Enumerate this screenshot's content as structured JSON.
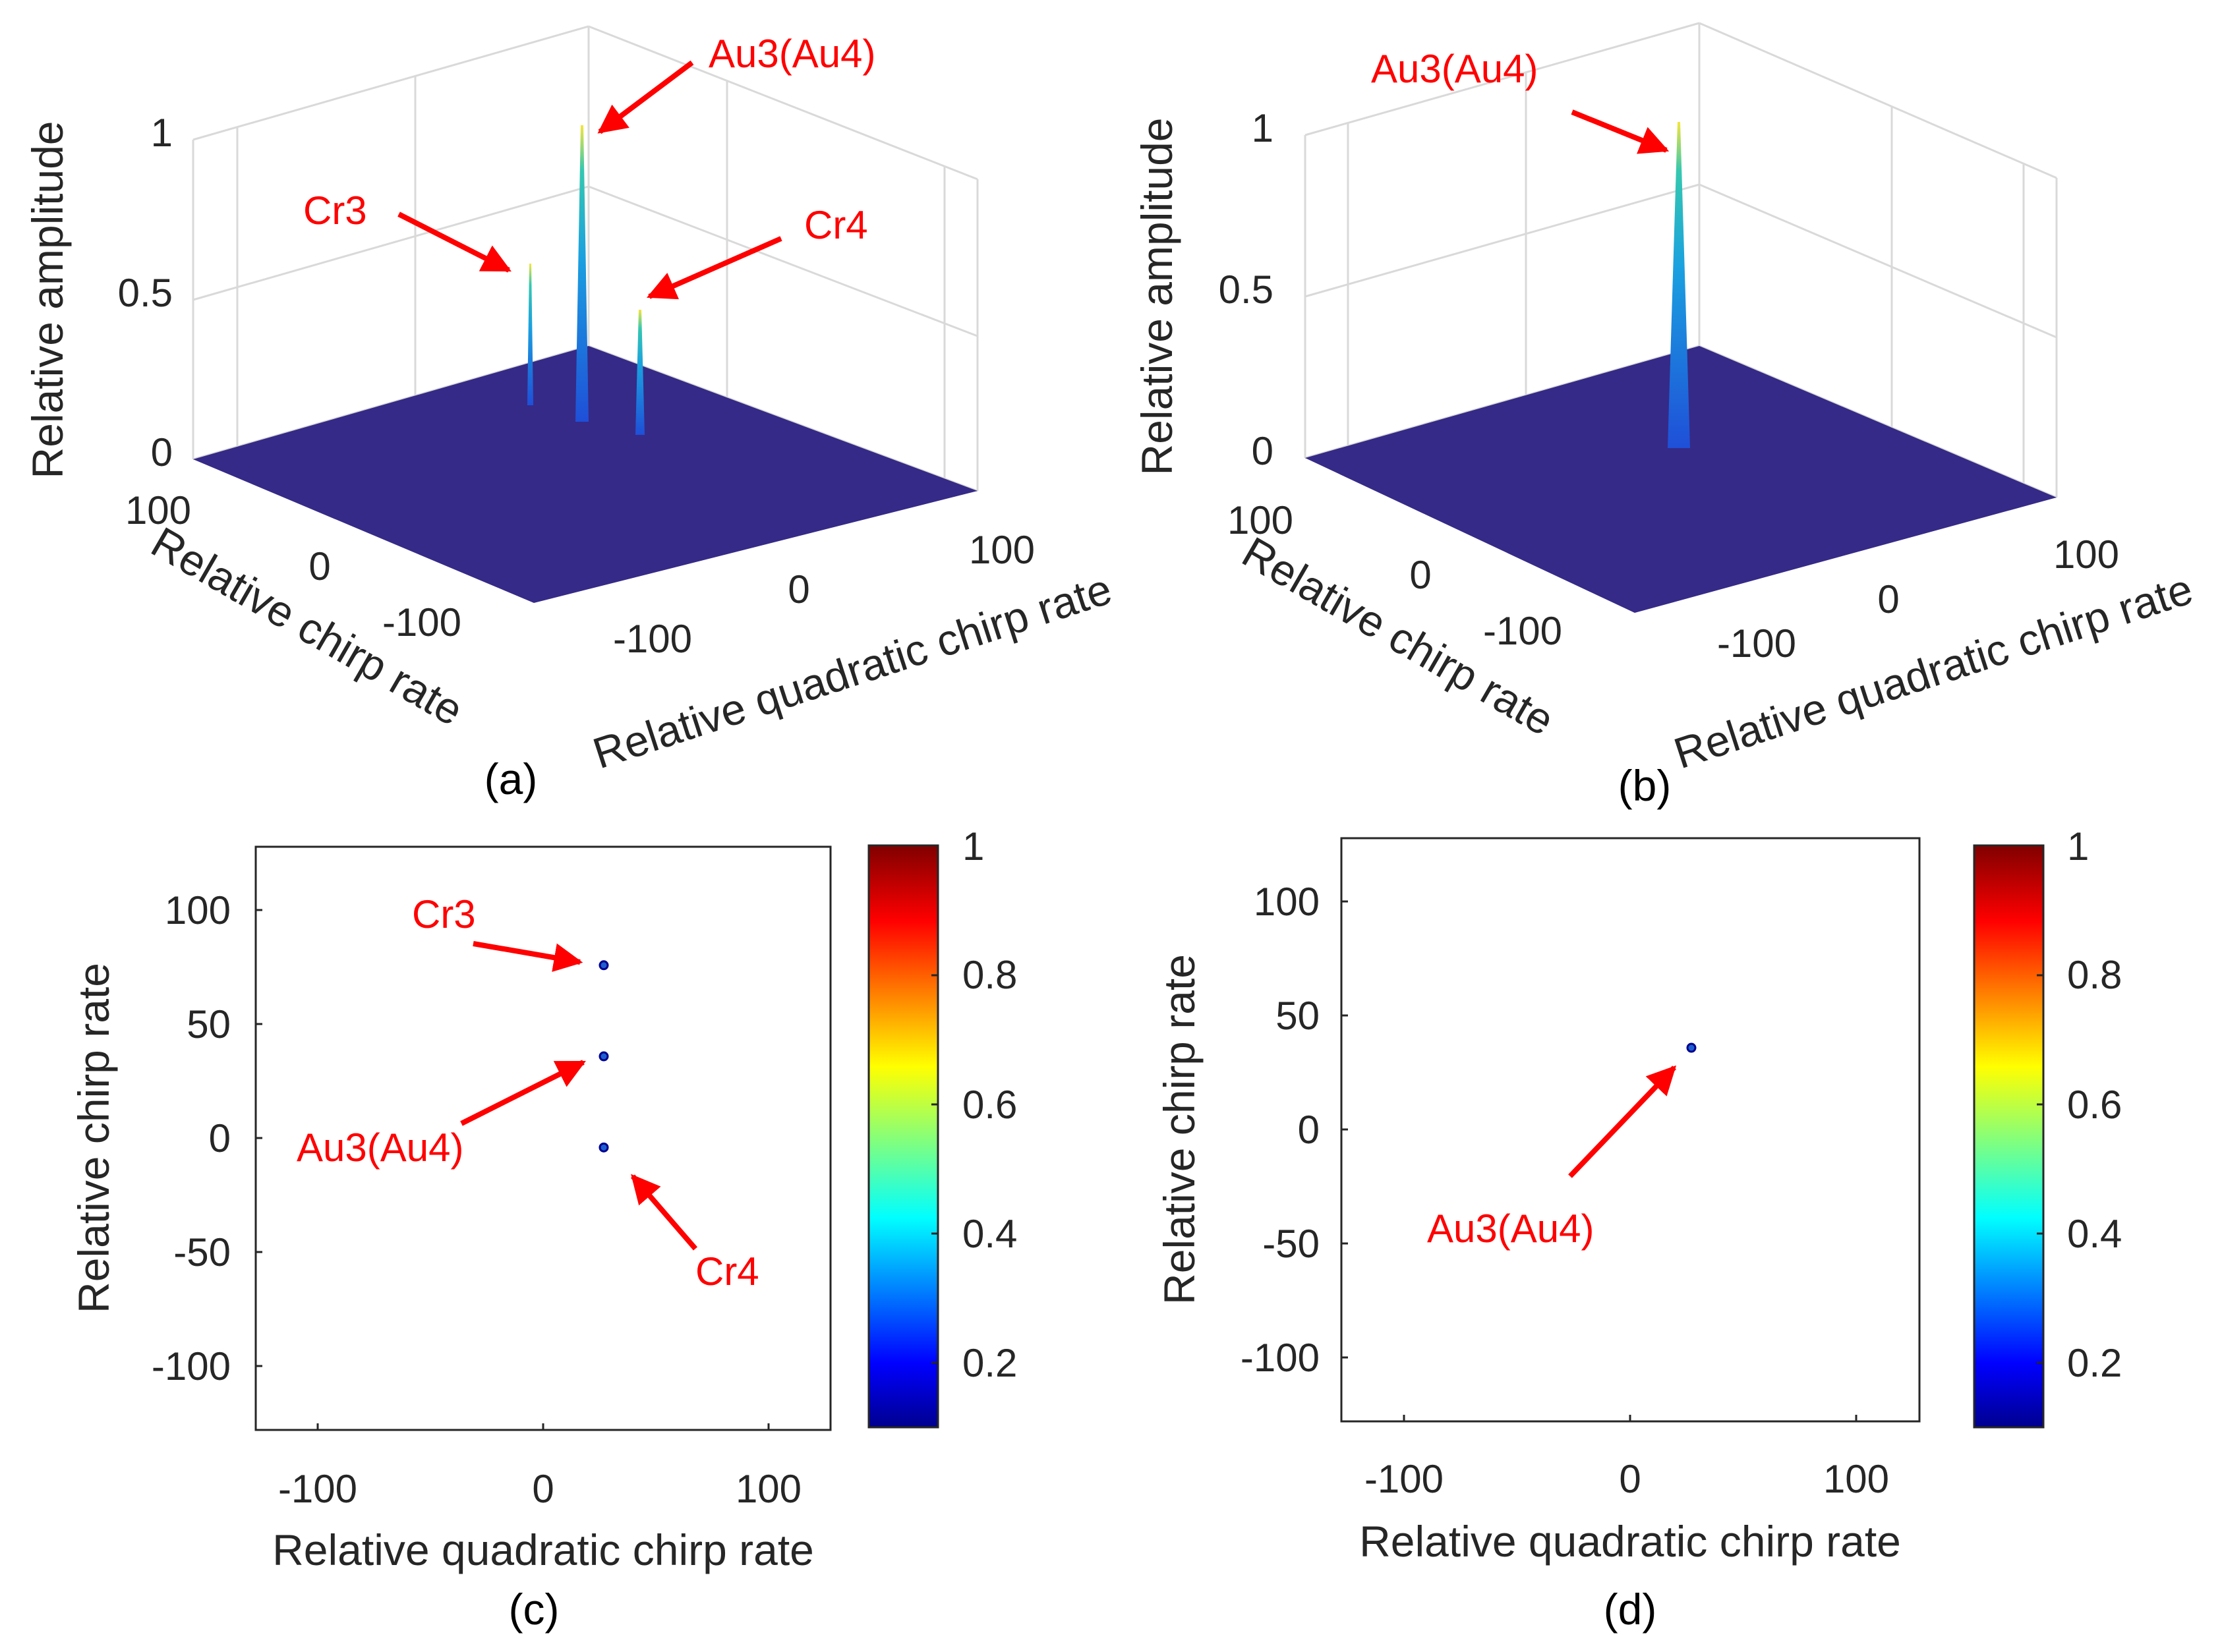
{
  "colors": {
    "surface": "#352a87",
    "annotation": "#ff0000",
    "axis": "#262626",
    "grid": "#e0e0e0",
    "colormap": "jet"
  },
  "chart_data": [
    {
      "panel": "(a)",
      "type": "surface3d",
      "zlabel": "Relative amplitude",
      "xlabel": "Relative chirp rate",
      "ylabel": "Relative quadratic chirp rate",
      "z_ticks": [
        "0",
        "0.5",
        "1"
      ],
      "x_ticks": [
        "100",
        "0",
        "-100"
      ],
      "y_ticks": [
        "-100",
        "0",
        "100"
      ],
      "zlim": [
        0,
        1
      ],
      "peaks": [
        {
          "name": "Cr3",
          "chirp_rate": 75,
          "quadratic_chirp_rate": 25,
          "amplitude": 0.6
        },
        {
          "name": "Au3(Au4)",
          "chirp_rate": 35,
          "quadratic_chirp_rate": 25,
          "amplitude": 1.0
        },
        {
          "name": "Cr4",
          "chirp_rate": -5,
          "quadratic_chirp_rate": 25,
          "amplitude": 0.46
        }
      ],
      "annotations": [
        "Au3(Au4)",
        "Cr3",
        "Cr4"
      ]
    },
    {
      "panel": "(b)",
      "type": "surface3d",
      "zlabel": "Relative amplitude",
      "xlabel": "Relative chirp rate",
      "ylabel": "Relative quadratic chirp rate",
      "z_ticks": [
        "0",
        "0.5",
        "1"
      ],
      "x_ticks": [
        "100",
        "0",
        "-100"
      ],
      "y_ticks": [
        "-100",
        "0",
        "100"
      ],
      "zlim": [
        0,
        1
      ],
      "peaks": [
        {
          "name": "Au3(Au4)",
          "chirp_rate": 35,
          "quadratic_chirp_rate": 25,
          "amplitude": 1.0
        }
      ],
      "annotations": [
        "Au3(Au4)"
      ]
    },
    {
      "panel": "(c)",
      "type": "heatmap",
      "xlabel": "Relative quadratic chirp rate",
      "ylabel": "Relative chirp rate",
      "xlim": [
        -128,
        128
      ],
      "ylim": [
        -128,
        128
      ],
      "x_ticks": [
        "-100",
        "0",
        "100"
      ],
      "y_ticks": [
        "100",
        "50",
        "0",
        "-50",
        "-100"
      ],
      "colorbar_ticks": [
        "1",
        "0.8",
        "0.6",
        "0.4",
        "0.2"
      ],
      "points": [
        {
          "name": "Cr3",
          "x": 27,
          "y": 76
        },
        {
          "name": "Au3(Au4)",
          "x": 27,
          "y": 36
        },
        {
          "name": "Cr4",
          "x": 27,
          "y": -4
        }
      ],
      "annotations": [
        "Cr3",
        "Au3(Au4)",
        "Cr4"
      ]
    },
    {
      "panel": "(d)",
      "type": "heatmap",
      "xlabel": "Relative quadratic chirp rate",
      "ylabel": "Relative chirp rate",
      "xlim": [
        -128,
        128
      ],
      "ylim": [
        -128,
        128
      ],
      "x_ticks": [
        "-100",
        "0",
        "100"
      ],
      "y_ticks": [
        "100",
        "50",
        "0",
        "-50",
        "-100"
      ],
      "colorbar_ticks": [
        "1",
        "0.8",
        "0.6",
        "0.4",
        "0.2"
      ],
      "points": [
        {
          "name": "Au3(Au4)",
          "x": 27,
          "y": 36
        }
      ],
      "annotations": [
        "Au3(Au4)"
      ]
    }
  ]
}
